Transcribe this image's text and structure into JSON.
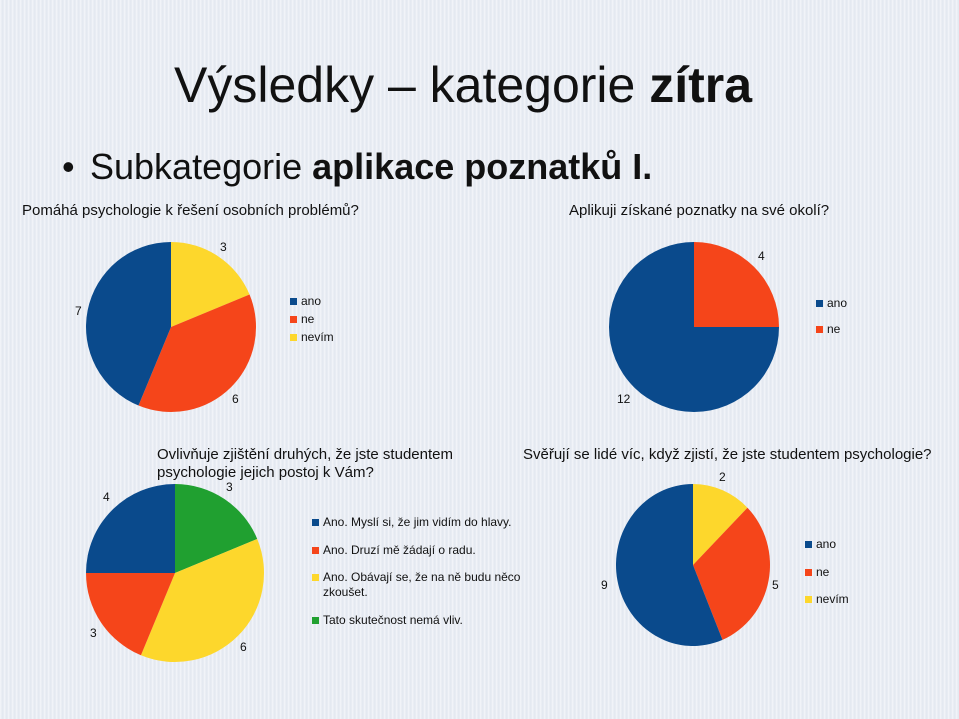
{
  "slide": {
    "title_regular": "Výsledky – kategorie ",
    "title_bold": "zítra",
    "bullet": "•",
    "subtitle_regular": "Subkategorie ",
    "subtitle_bold": "aplikace poznatků I."
  },
  "colors": {
    "blue": "#0a4a8c",
    "red": "#f5451a",
    "yellow": "#fdd72c",
    "green": "#20a030"
  },
  "chart_data": [
    {
      "type": "pie",
      "title": "Pomáhá psychologie k řešení osobních problémů?",
      "categories": [
        "ano",
        "ne",
        "nevím"
      ],
      "values": [
        7,
        6,
        3
      ],
      "colors": [
        "#0a4a8c",
        "#f5451a",
        "#fdd72c"
      ],
      "start": "yellow slice starts at 12 o'clock, clockwise: nevím, ne, ano",
      "order": [
        2,
        1,
        0
      ],
      "legend_position": "right"
    },
    {
      "type": "pie",
      "title": "Aplikuji získané poznatky na své okolí?",
      "categories": [
        "ano",
        "ne"
      ],
      "values": [
        12,
        4
      ],
      "colors": [
        "#0a4a8c",
        "#f5451a"
      ],
      "order": [
        1,
        0
      ],
      "legend_position": "right"
    },
    {
      "type": "pie",
      "title": "Ovlivňuje zjištění druhých, že jste studentem psychologie jejich postoj k Vám?",
      "categories": [
        "Ano. Myslí si, že jim vidím do hlavy.",
        "Ano. Druzí mě žádají o radu.",
        "Ano. Obávají se, že na ně budu něco zkoušet.",
        "Tato skutečnost nemá vliv."
      ],
      "values": [
        4,
        3,
        6,
        3
      ],
      "colors": [
        "#0a4a8c",
        "#f5451a",
        "#fdd72c",
        "#20a030"
      ],
      "order": [
        3,
        2,
        1,
        0
      ],
      "legend_position": "right"
    },
    {
      "type": "pie",
      "title": "Svěřují se lidé víc, když zjistí, že jste studentem psychologie?",
      "categories": [
        "ano",
        "ne",
        "nevím"
      ],
      "values": [
        9,
        5,
        2
      ],
      "colors": [
        "#0a4a8c",
        "#f5451a",
        "#fdd72c"
      ],
      "order": [
        2,
        1,
        0
      ],
      "legend_position": "right"
    }
  ]
}
